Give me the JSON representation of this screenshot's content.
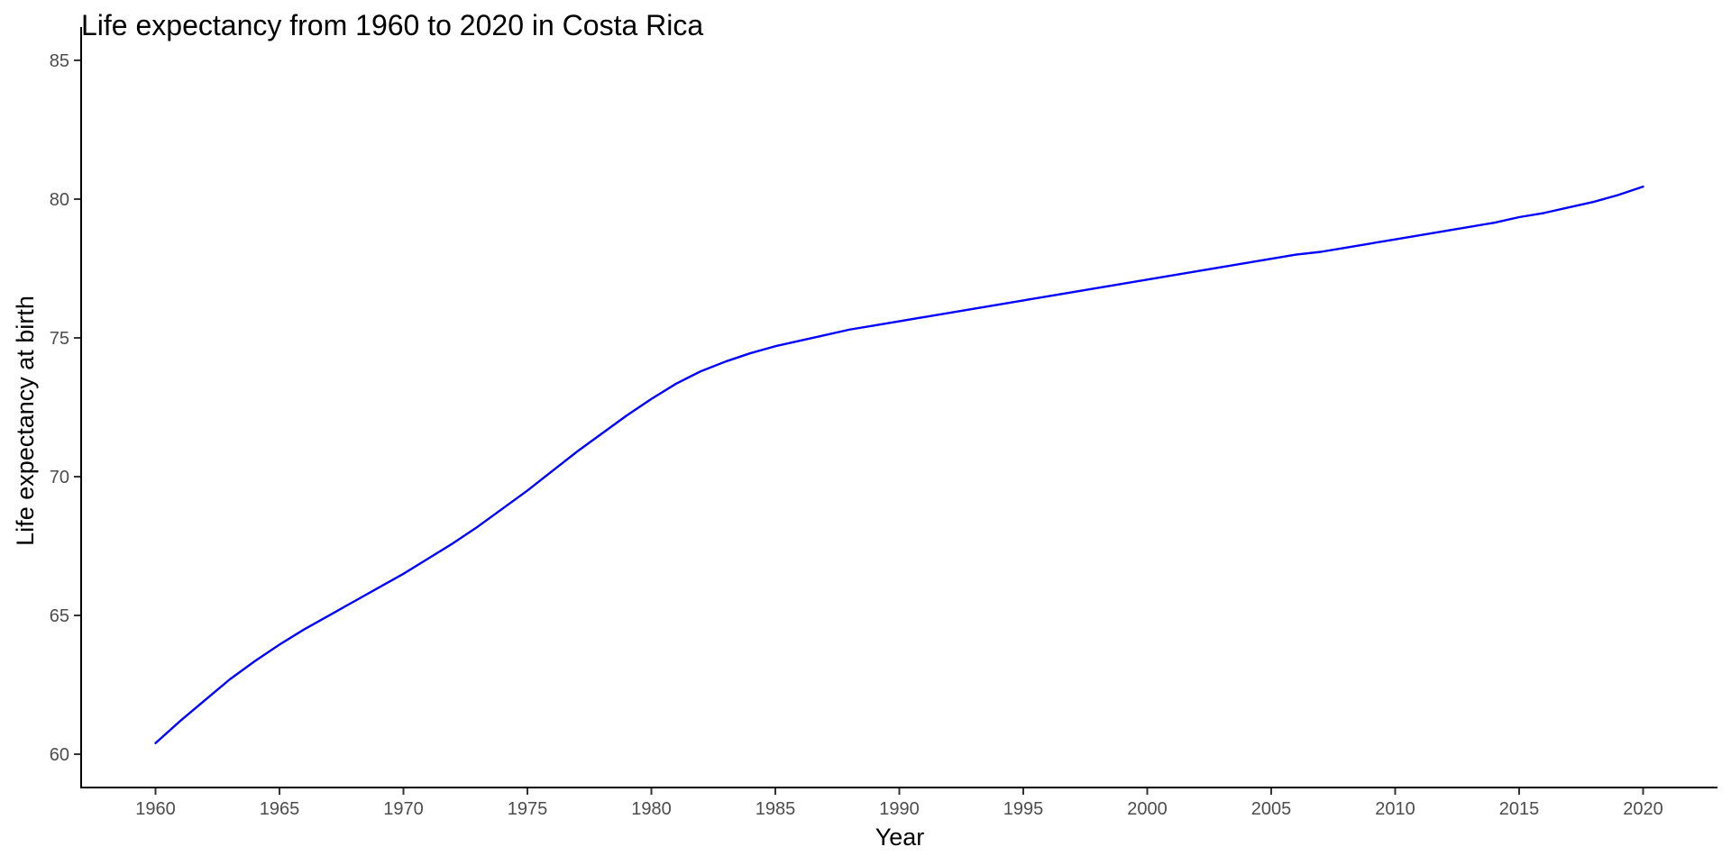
{
  "chart_data": {
    "type": "line",
    "title": "Life expectancy from 1960 to 2020 in Costa Rica",
    "xlabel": "Year",
    "ylabel": "Life expectancy at birth",
    "xlim": [
      1957,
      2023
    ],
    "ylim": [
      58.8,
      86.2
    ],
    "xticks": [
      1960,
      1965,
      1970,
      1975,
      1980,
      1985,
      1990,
      1995,
      2000,
      2005,
      2010,
      2015,
      2020
    ],
    "yticks": [
      60,
      65,
      70,
      75,
      80,
      85
    ],
    "grid": false,
    "line_color": "#0000ff",
    "series": [
      {
        "x": [
          1960,
          1961,
          1962,
          1963,
          1964,
          1965,
          1966,
          1967,
          1968,
          1969,
          1970,
          1971,
          1972,
          1973,
          1974,
          1975,
          1976,
          1977,
          1978,
          1979,
          1980,
          1981,
          1982,
          1983,
          1984,
          1985,
          1986,
          1987,
          1988,
          1989,
          1990,
          1991,
          1992,
          1993,
          1994,
          1995,
          1996,
          1997,
          1998,
          1999,
          2000,
          2001,
          2002,
          2003,
          2004,
          2005,
          2006,
          2007,
          2008,
          2009,
          2010,
          2011,
          2012,
          2013,
          2014,
          2015,
          2016,
          2017,
          2018,
          2019,
          2020
        ],
        "values": [
          60.4,
          61.2,
          61.95,
          62.7,
          63.35,
          63.95,
          64.5,
          65.0,
          65.5,
          66.0,
          66.5,
          67.05,
          67.6,
          68.2,
          68.85,
          69.5,
          70.2,
          70.9,
          71.55,
          72.2,
          72.8,
          73.35,
          73.8,
          74.15,
          74.45,
          74.7,
          74.9,
          75.1,
          75.3,
          75.45,
          75.6,
          75.75,
          75.9,
          76.05,
          76.2,
          76.35,
          76.5,
          76.65,
          76.8,
          76.95,
          77.1,
          77.25,
          77.4,
          77.55,
          77.7,
          77.85,
          78.0,
          78.1,
          78.25,
          78.4,
          78.55,
          78.7,
          78.85,
          79.0,
          79.15,
          79.35,
          79.5,
          79.7,
          79.9,
          80.15,
          80.45
        ]
      }
    ]
  }
}
